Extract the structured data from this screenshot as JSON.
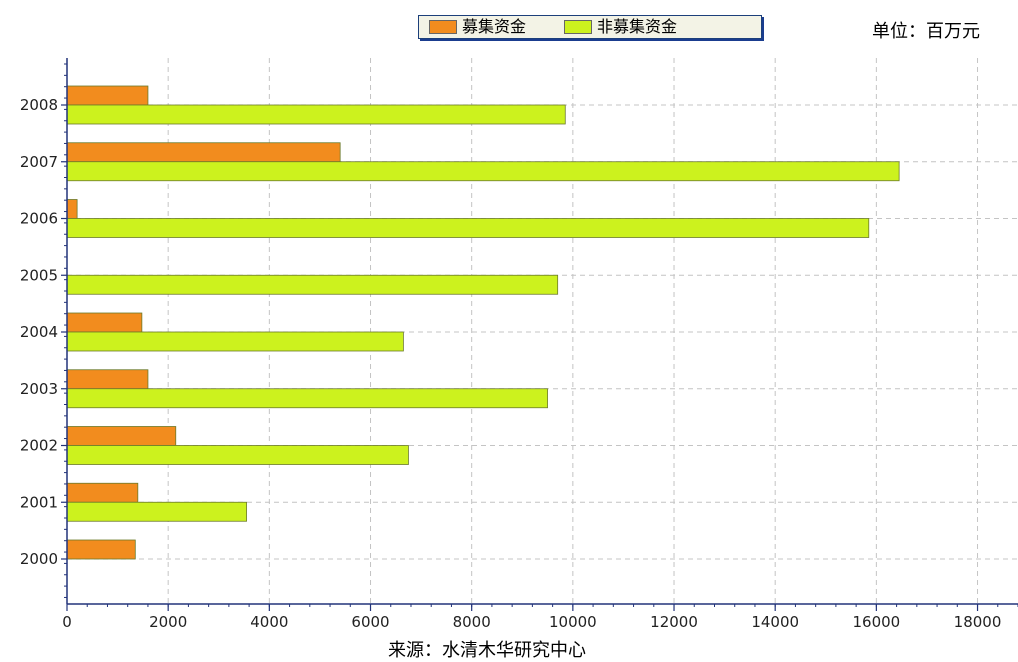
{
  "legend": {
    "items": [
      {
        "label": "募集资金",
        "color": "#f28c1e"
      },
      {
        "label": "非募集资金",
        "color": "#ccf21e"
      }
    ]
  },
  "unit_label": "单位：百万元",
  "source_label": "来源：水清木华研究中心",
  "chart_data": {
    "type": "bar",
    "orientation": "horizontal",
    "categories": [
      "2000",
      "2001",
      "2002",
      "2003",
      "2004",
      "2005",
      "2006",
      "2007",
      "2008"
    ],
    "series": [
      {
        "name": "募集资金",
        "color": "#f28c1e",
        "values": [
          1350,
          1400,
          2150,
          1600,
          1480,
          0,
          200,
          5400,
          1600
        ]
      },
      {
        "name": "非募集资金",
        "color": "#ccf21e",
        "values": [
          0,
          3550,
          6750,
          9500,
          6650,
          9700,
          15850,
          16450,
          9850
        ]
      }
    ],
    "xlim": [
      0,
      18800
    ],
    "xticks": [
      0,
      2000,
      4000,
      6000,
      8000,
      10000,
      12000,
      14000,
      16000,
      18000
    ],
    "grid": true,
    "legend_position": "top-center"
  }
}
